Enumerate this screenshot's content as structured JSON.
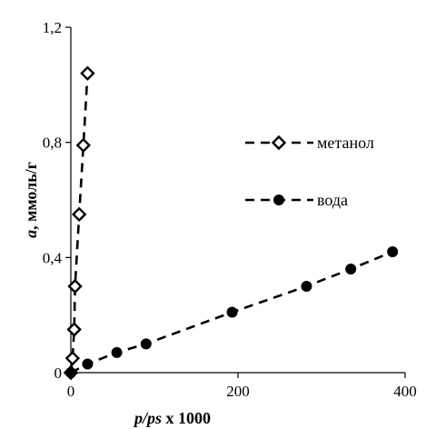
{
  "chart_data": {
    "type": "scatter",
    "xlabel_italic": "p/ps",
    "xlabel_suffix": " x 1000",
    "ylabel_italic": "a",
    "ylabel_suffix": ", ммоль/г",
    "xlim": [
      0,
      400
    ],
    "ylim": [
      0,
      1.2
    ],
    "x_ticks": [
      "0",
      "200",
      "400"
    ],
    "y_ticks": [
      "0",
      "0,4",
      "0,8",
      "1,2"
    ],
    "grid": false,
    "legend_position": "right",
    "series": [
      {
        "name": "метанол",
        "marker": "open-diamond",
        "line": "dashed",
        "color": "#000000",
        "points": [
          {
            "x": 0,
            "y": 0.0
          },
          {
            "x": 2,
            "y": 0.05
          },
          {
            "x": 4,
            "y": 0.15
          },
          {
            "x": 5,
            "y": 0.3
          },
          {
            "x": 10,
            "y": 0.55
          },
          {
            "x": 15,
            "y": 0.79
          },
          {
            "x": 20,
            "y": 1.04
          }
        ]
      },
      {
        "name": "вода",
        "marker": "filled-circle",
        "line": "dashed",
        "color": "#000000",
        "points": [
          {
            "x": 0,
            "y": 0.0
          },
          {
            "x": 20,
            "y": 0.03
          },
          {
            "x": 55,
            "y": 0.07
          },
          {
            "x": 90,
            "y": 0.1
          },
          {
            "x": 193,
            "y": 0.21
          },
          {
            "x": 282,
            "y": 0.3
          },
          {
            "x": 335,
            "y": 0.36
          },
          {
            "x": 385,
            "y": 0.42
          }
        ]
      }
    ]
  }
}
